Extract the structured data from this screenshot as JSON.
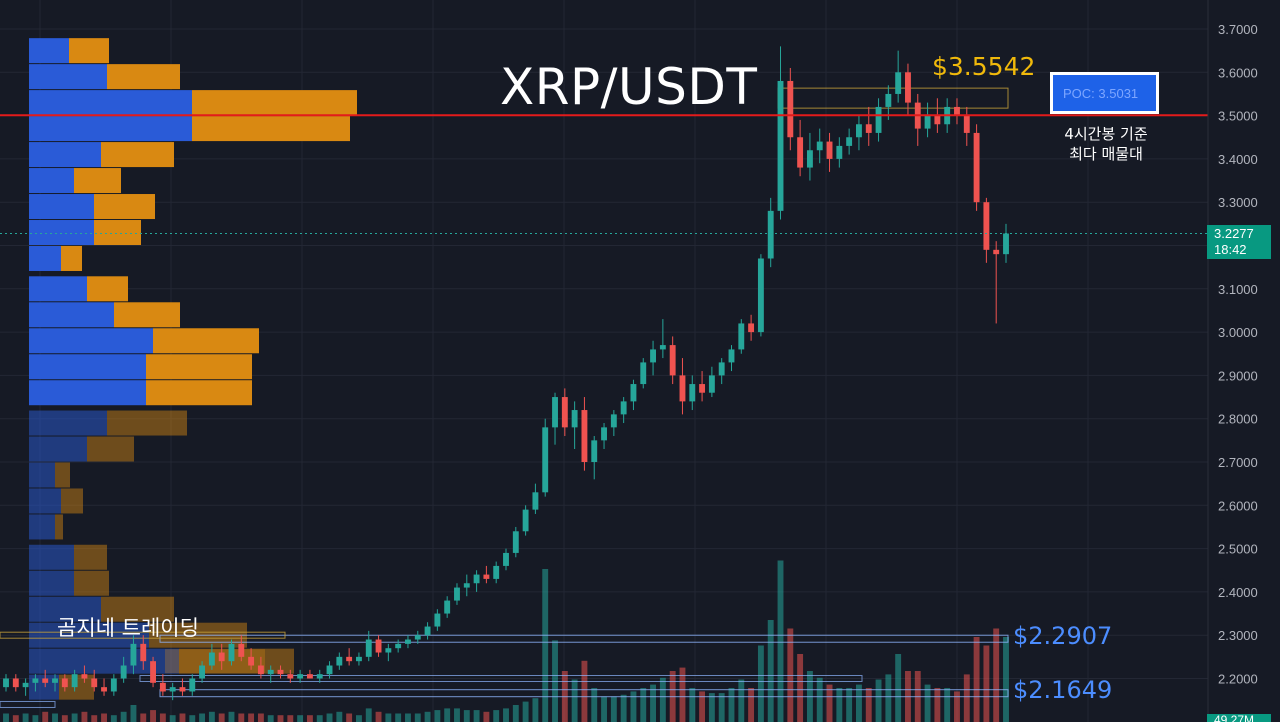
{
  "title": "XRP/USDT",
  "price_high_label": "$3.5542",
  "poc_label": "POC: 3.5031",
  "poc_caption_line1": "4시간봉 기준",
  "poc_caption_line2": "최다 매물대",
  "watermark": "곰지네 트레이딩",
  "level_1_label": "$2.2907",
  "level_2_label": "$2.1649",
  "last_price": "3.2277",
  "countdown": "18:42",
  "bottom_badge": "49.27M",
  "colors": {
    "background": "#161a25",
    "up": "#26a69a",
    "down": "#ef5350",
    "poc_line": "#e31b1b",
    "volume_profile_buy": "#2a5bd7",
    "volume_profile_sell": "#d98912",
    "level_lines": "#8fb6ff"
  },
  "chart_data": {
    "type": "candlestick",
    "title": "XRP/USDT",
    "ylim": [
      2.15,
      3.7
    ],
    "y_ticks": [
      "3.7000",
      "3.6000",
      "3.5000",
      "3.4000",
      "3.3000",
      "3.2000",
      "3.1000",
      "3.0000",
      "2.9000",
      "2.8000",
      "2.7000",
      "2.6000",
      "2.5000",
      "2.4000",
      "2.3000",
      "2.2000"
    ],
    "poc": 3.5031,
    "marked_high": 3.5542,
    "support_levels": [
      2.2907,
      2.1649
    ],
    "last_price": 3.2277,
    "candles": [
      [
        2.18,
        2.21,
        2.17,
        2.2
      ],
      [
        2.2,
        2.21,
        2.17,
        2.18
      ],
      [
        2.18,
        2.2,
        2.16,
        2.19
      ],
      [
        2.19,
        2.21,
        2.17,
        2.2
      ],
      [
        2.2,
        2.22,
        2.18,
        2.19
      ],
      [
        2.19,
        2.21,
        2.17,
        2.2
      ],
      [
        2.2,
        2.21,
        2.17,
        2.18
      ],
      [
        2.18,
        2.22,
        2.17,
        2.21
      ],
      [
        2.21,
        2.23,
        2.19,
        2.2
      ],
      [
        2.2,
        2.22,
        2.17,
        2.18
      ],
      [
        2.18,
        2.2,
        2.16,
        2.17
      ],
      [
        2.17,
        2.21,
        2.16,
        2.2
      ],
      [
        2.2,
        2.25,
        2.19,
        2.23
      ],
      [
        2.23,
        2.3,
        2.21,
        2.28
      ],
      [
        2.28,
        2.3,
        2.22,
        2.24
      ],
      [
        2.24,
        2.25,
        2.18,
        2.19
      ],
      [
        2.19,
        2.21,
        2.16,
        2.17
      ],
      [
        2.17,
        2.19,
        2.15,
        2.18
      ],
      [
        2.18,
        2.2,
        2.16,
        2.17
      ],
      [
        2.17,
        2.21,
        2.16,
        2.2
      ],
      [
        2.2,
        2.24,
        2.19,
        2.23
      ],
      [
        2.23,
        2.28,
        2.22,
        2.26
      ],
      [
        2.26,
        2.28,
        2.22,
        2.24
      ],
      [
        2.24,
        2.29,
        2.23,
        2.28
      ],
      [
        2.28,
        2.3,
        2.24,
        2.25
      ],
      [
        2.25,
        2.27,
        2.22,
        2.23
      ],
      [
        2.23,
        2.25,
        2.2,
        2.21
      ],
      [
        2.21,
        2.23,
        2.19,
        2.22
      ],
      [
        2.22,
        2.23,
        2.2,
        2.21
      ],
      [
        2.21,
        2.22,
        2.19,
        2.2
      ],
      [
        2.2,
        2.22,
        2.19,
        2.21
      ],
      [
        2.21,
        2.22,
        2.2,
        2.2
      ],
      [
        2.2,
        2.22,
        2.19,
        2.21
      ],
      [
        2.21,
        2.24,
        2.2,
        2.23
      ],
      [
        2.23,
        2.26,
        2.22,
        2.25
      ],
      [
        2.25,
        2.27,
        2.23,
        2.24
      ],
      [
        2.24,
        2.26,
        2.23,
        2.25
      ],
      [
        2.25,
        2.31,
        2.24,
        2.29
      ],
      [
        2.29,
        2.3,
        2.25,
        2.26
      ],
      [
        2.26,
        2.28,
        2.24,
        2.27
      ],
      [
        2.27,
        2.29,
        2.26,
        2.28
      ],
      [
        2.28,
        2.3,
        2.27,
        2.29
      ],
      [
        2.29,
        2.31,
        2.28,
        2.3
      ],
      [
        2.3,
        2.33,
        2.29,
        2.32
      ],
      [
        2.32,
        2.36,
        2.31,
        2.35
      ],
      [
        2.35,
        2.39,
        2.34,
        2.38
      ],
      [
        2.38,
        2.42,
        2.37,
        2.41
      ],
      [
        2.41,
        2.44,
        2.39,
        2.42
      ],
      [
        2.42,
        2.45,
        2.4,
        2.44
      ],
      [
        2.44,
        2.46,
        2.42,
        2.43
      ],
      [
        2.43,
        2.47,
        2.42,
        2.46
      ],
      [
        2.46,
        2.5,
        2.45,
        2.49
      ],
      [
        2.49,
        2.55,
        2.48,
        2.54
      ],
      [
        2.54,
        2.6,
        2.53,
        2.59
      ],
      [
        2.59,
        2.65,
        2.58,
        2.63
      ],
      [
        2.63,
        2.8,
        2.62,
        2.78
      ],
      [
        2.78,
        2.86,
        2.74,
        2.85
      ],
      [
        2.85,
        2.87,
        2.76,
        2.78
      ],
      [
        2.78,
        2.84,
        2.73,
        2.82
      ],
      [
        2.82,
        2.85,
        2.68,
        2.7
      ],
      [
        2.7,
        2.76,
        2.66,
        2.75
      ],
      [
        2.75,
        2.79,
        2.73,
        2.78
      ],
      [
        2.78,
        2.82,
        2.76,
        2.81
      ],
      [
        2.81,
        2.85,
        2.79,
        2.84
      ],
      [
        2.84,
        2.89,
        2.82,
        2.88
      ],
      [
        2.88,
        2.94,
        2.87,
        2.93
      ],
      [
        2.93,
        2.98,
        2.9,
        2.96
      ],
      [
        2.96,
        3.03,
        2.94,
        2.97
      ],
      [
        2.97,
        2.99,
        2.88,
        2.9
      ],
      [
        2.9,
        2.94,
        2.81,
        2.84
      ],
      [
        2.84,
        2.9,
        2.82,
        2.88
      ],
      [
        2.88,
        2.91,
        2.84,
        2.86
      ],
      [
        2.86,
        2.92,
        2.85,
        2.9
      ],
      [
        2.9,
        2.94,
        2.88,
        2.93
      ],
      [
        2.93,
        2.97,
        2.91,
        2.96
      ],
      [
        2.96,
        3.03,
        2.95,
        3.02
      ],
      [
        3.02,
        3.04,
        2.98,
        3.0
      ],
      [
        3.0,
        3.18,
        2.99,
        3.17
      ],
      [
        3.17,
        3.31,
        3.15,
        3.28
      ],
      [
        3.28,
        3.66,
        3.26,
        3.58
      ],
      [
        3.58,
        3.61,
        3.42,
        3.45
      ],
      [
        3.45,
        3.49,
        3.36,
        3.38
      ],
      [
        3.38,
        3.46,
        3.35,
        3.42
      ],
      [
        3.42,
        3.47,
        3.39,
        3.44
      ],
      [
        3.44,
        3.46,
        3.37,
        3.4
      ],
      [
        3.4,
        3.45,
        3.38,
        3.43
      ],
      [
        3.43,
        3.47,
        3.41,
        3.45
      ],
      [
        3.45,
        3.5,
        3.42,
        3.48
      ],
      [
        3.48,
        3.52,
        3.43,
        3.46
      ],
      [
        3.46,
        3.54,
        3.44,
        3.52
      ],
      [
        3.52,
        3.57,
        3.49,
        3.55
      ],
      [
        3.55,
        3.65,
        3.53,
        3.6
      ],
      [
        3.6,
        3.62,
        3.5,
        3.53
      ],
      [
        3.53,
        3.55,
        3.43,
        3.47
      ],
      [
        3.47,
        3.53,
        3.45,
        3.5
      ],
      [
        3.5,
        3.54,
        3.46,
        3.48
      ],
      [
        3.48,
        3.54,
        3.46,
        3.52
      ],
      [
        3.52,
        3.54,
        3.48,
        3.5
      ],
      [
        3.5,
        3.52,
        3.43,
        3.46
      ],
      [
        3.46,
        3.48,
        3.28,
        3.3
      ],
      [
        3.3,
        3.31,
        3.16,
        3.19
      ],
      [
        3.19,
        3.21,
        3.02,
        3.18
      ],
      [
        3.18,
        3.25,
        3.16,
        3.2277
      ]
    ],
    "volume_profile": [
      {
        "price": 3.65,
        "buy": 40,
        "sell": 40
      },
      {
        "price": 3.59,
        "buy": 78,
        "sell": 73
      },
      {
        "price": 3.53,
        "buy": 163,
        "sell": 165
      },
      {
        "price": 3.47,
        "buy": 163,
        "sell": 158
      },
      {
        "price": 3.41,
        "buy": 72,
        "sell": 73
      },
      {
        "price": 3.35,
        "buy": 45,
        "sell": 47
      },
      {
        "price": 3.29,
        "buy": 65,
        "sell": 61
      },
      {
        "price": 3.23,
        "buy": 65,
        "sell": 47
      },
      {
        "price": 3.17,
        "buy": 32,
        "sell": 21
      },
      {
        "price": 3.1,
        "buy": 58,
        "sell": 41
      },
      {
        "price": 3.04,
        "buy": 85,
        "sell": 66
      },
      {
        "price": 2.98,
        "buy": 124,
        "sell": 106
      },
      {
        "price": 2.92,
        "buy": 117,
        "sell": 106
      },
      {
        "price": 2.86,
        "buy": 117,
        "sell": 106
      },
      {
        "price": 2.79,
        "buy": 78,
        "sell": 80
      },
      {
        "price": 2.73,
        "buy": 58,
        "sell": 47
      },
      {
        "price": 2.67,
        "buy": 26,
        "sell": 15
      },
      {
        "price": 2.61,
        "buy": 32,
        "sell": 22
      },
      {
        "price": 2.55,
        "buy": 26,
        "sell": 8
      },
      {
        "price": 2.48,
        "buy": 45,
        "sell": 33
      },
      {
        "price": 2.42,
        "buy": 45,
        "sell": 35
      },
      {
        "price": 2.36,
        "buy": 72,
        "sell": 73
      },
      {
        "price": 2.3,
        "buy": 120,
        "sell": 98
      },
      {
        "price": 2.24,
        "buy": 150,
        "sell": 115
      },
      {
        "price": 2.18,
        "buy": 30,
        "sell": 35
      }
    ],
    "volume_bars": [
      0.05,
      0.04,
      0.05,
      0.04,
      0.06,
      0.05,
      0.04,
      0.05,
      0.06,
      0.04,
      0.05,
      0.04,
      0.06,
      0.1,
      0.05,
      0.07,
      0.05,
      0.04,
      0.05,
      0.04,
      0.05,
      0.06,
      0.05,
      0.06,
      0.05,
      0.05,
      0.05,
      0.04,
      0.04,
      0.04,
      0.04,
      0.04,
      0.04,
      0.05,
      0.06,
      0.05,
      0.04,
      0.08,
      0.06,
      0.05,
      0.05,
      0.05,
      0.05,
      0.06,
      0.07,
      0.08,
      0.08,
      0.07,
      0.07,
      0.06,
      0.07,
      0.08,
      0.1,
      0.12,
      0.14,
      0.9,
      0.48,
      0.3,
      0.25,
      0.36,
      0.2,
      0.15,
      0.15,
      0.16,
      0.18,
      0.2,
      0.22,
      0.26,
      0.3,
      0.32,
      0.2,
      0.18,
      0.17,
      0.17,
      0.2,
      0.25,
      0.2,
      0.45,
      0.6,
      0.95,
      0.55,
      0.4,
      0.3,
      0.26,
      0.22,
      0.2,
      0.2,
      0.22,
      0.2,
      0.25,
      0.28,
      0.4,
      0.3,
      0.3,
      0.22,
      0.2,
      0.2,
      0.18,
      0.28,
      0.5,
      0.45,
      0.55,
      0.5
    ]
  }
}
